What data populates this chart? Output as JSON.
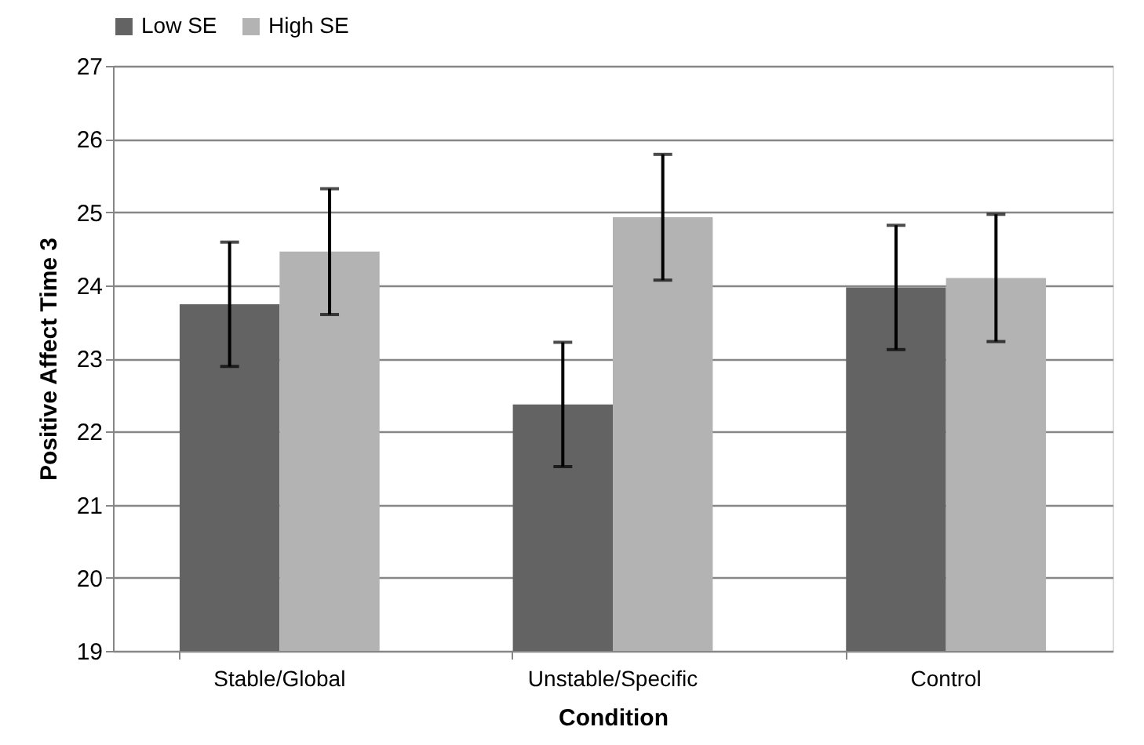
{
  "chart_data": {
    "type": "bar",
    "xlabel": "Condition",
    "ylabel": "Positive Affect Time 3",
    "categories": [
      "Stable/Global",
      "Unstable/Specific",
      "Control"
    ],
    "series": [
      {
        "name": "Low SE",
        "color": "#636363",
        "values": [
          23.74,
          22.37,
          23.97
        ],
        "errors": [
          0.85,
          0.85,
          0.85
        ]
      },
      {
        "name": "High SE",
        "color": "#b3b3b3",
        "values": [
          24.46,
          24.93,
          24.1
        ],
        "errors": [
          0.86,
          0.86,
          0.87
        ]
      }
    ],
    "ylim": [
      19,
      27
    ],
    "yticks": [
      19,
      20,
      21,
      22,
      23,
      24,
      25,
      26,
      27
    ],
    "grid": "y",
    "legend": "top"
  }
}
